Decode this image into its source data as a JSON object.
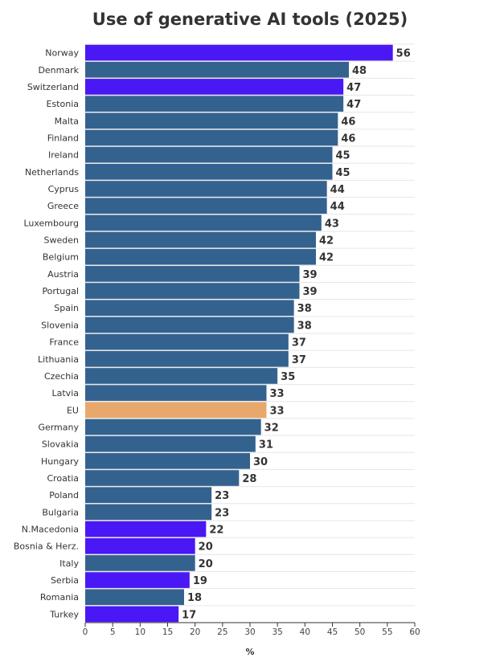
{
  "chart_data": {
    "type": "bar",
    "orientation": "horizontal",
    "title": "Use of generative AI tools (2025)",
    "xlabel": "%",
    "ylabel": "",
    "xlim": [
      0,
      60
    ],
    "xticks": [
      0,
      5,
      10,
      15,
      20,
      25,
      30,
      35,
      40,
      45,
      50,
      55,
      60
    ],
    "grid": true,
    "legend": "none",
    "categories": [
      "Norway",
      "Denmark",
      "Switzerland",
      "Estonia",
      "Malta",
      "Finland",
      "Ireland",
      "Netherlands",
      "Cyprus",
      "Greece",
      "Luxembourg",
      "Sweden",
      "Belgium",
      "Austria",
      "Portugal",
      "Spain",
      "Slovenia",
      "France",
      "Lithuania",
      "Czechia",
      "Latvia",
      "EU",
      "Germany",
      "Slovakia",
      "Hungary",
      "Croatia",
      "Poland",
      "Bulgaria",
      "N.Macedonia",
      "Bosnia & Herz.",
      "Italy",
      "Serbia",
      "Romania",
      "Turkey"
    ],
    "values": [
      56,
      48,
      47,
      47,
      46,
      46,
      45,
      45,
      44,
      44,
      43,
      42,
      42,
      39,
      39,
      38,
      38,
      37,
      37,
      35,
      33,
      33,
      32,
      31,
      30,
      28,
      23,
      23,
      22,
      20,
      20,
      19,
      18,
      17
    ],
    "bar_groups": [
      "non-eu",
      "eu-member",
      "non-eu",
      "eu-member",
      "eu-member",
      "eu-member",
      "eu-member",
      "eu-member",
      "eu-member",
      "eu-member",
      "eu-member",
      "eu-member",
      "eu-member",
      "eu-member",
      "eu-member",
      "eu-member",
      "eu-member",
      "eu-member",
      "eu-member",
      "eu-member",
      "eu-member",
      "eu-average",
      "eu-member",
      "eu-member",
      "eu-member",
      "eu-member",
      "eu-member",
      "eu-member",
      "non-eu",
      "non-eu",
      "eu-member",
      "non-eu",
      "eu-member",
      "non-eu"
    ],
    "colors": {
      "eu-member": "#34628f",
      "non-eu": "#4a17f5",
      "eu-average": "#e8a86b",
      "grid": "#e6e6e6",
      "axis": "#333333"
    }
  }
}
